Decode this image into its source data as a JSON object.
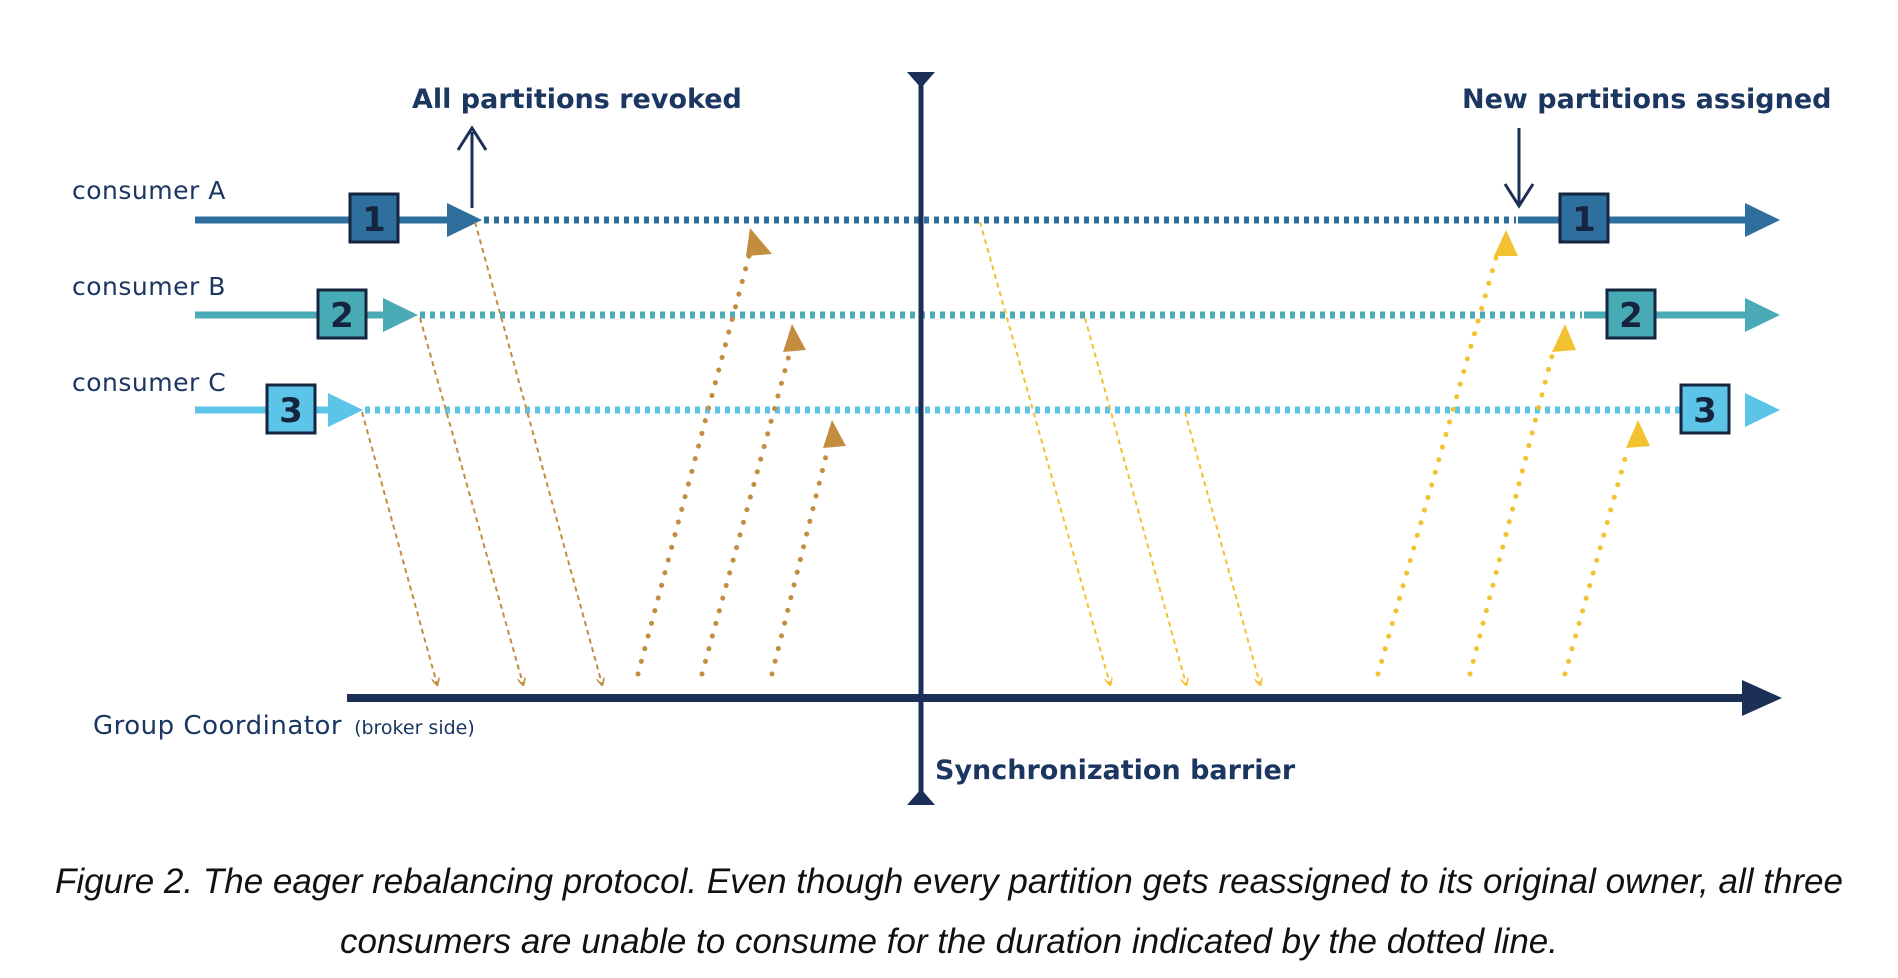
{
  "labels": {
    "revoked": "All partitions revoked",
    "assigned": "New partitions assigned",
    "coordinator": "Group Coordinator",
    "coordinator_sub": "(broker side)",
    "barrier": "Synchronization barrier"
  },
  "consumers": [
    {
      "label": "consumer A",
      "partition": "1",
      "color": "#2f6f9e"
    },
    {
      "label": "consumer B",
      "partition": "2",
      "color": "#4aaab5"
    },
    {
      "label": "consumer C",
      "partition": "3",
      "color": "#5cc4e6"
    }
  ],
  "colors": {
    "navy": "#1b2f57",
    "box_fill_a": "#2f6f9e",
    "box_fill_b": "#48aab4",
    "box_fill_c": "#5cc4e6",
    "revoke_messages": "#c28d3f",
    "assign_messages": "#f2c230"
  },
  "caption": "Figure 2. The eager rebalancing protocol. Even though every partition gets reassigned to its original owner, all three consumers are unable to consume for the duration indicated by the dotted line."
}
